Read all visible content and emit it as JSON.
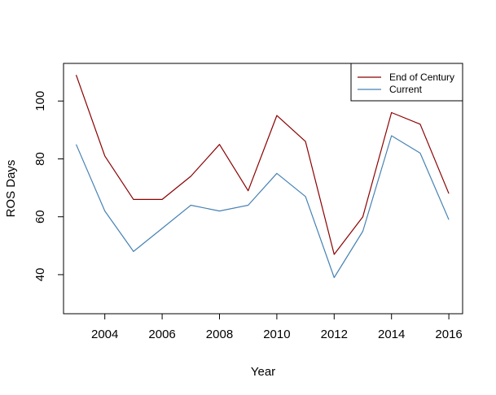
{
  "chart_data": {
    "type": "line",
    "xlabel": "Year",
    "ylabel": "ROS Days",
    "x": [
      2003,
      2004,
      2005,
      2006,
      2007,
      2008,
      2009,
      2010,
      2011,
      2012,
      2013,
      2014,
      2015,
      2016
    ],
    "xticks": [
      2004,
      2006,
      2008,
      2010,
      2012,
      2014,
      2016
    ],
    "yticks": [
      40,
      60,
      80,
      100
    ],
    "xlim": [
      2002.56,
      2016.48
    ],
    "ylim": [
      26.5,
      113
    ],
    "grid": false,
    "legend_position": "top-right",
    "series": [
      {
        "name": "End of Century",
        "color": "#8B0000",
        "values": [
          109,
          81,
          66,
          66,
          74,
          85,
          69,
          95,
          86,
          47,
          60,
          96,
          92,
          68
        ]
      },
      {
        "name": "Current",
        "color": "#4682B4",
        "values": [
          85,
          62,
          48,
          56,
          64,
          62,
          64,
          75,
          67,
          39,
          55,
          88,
          82,
          59
        ]
      }
    ]
  }
}
